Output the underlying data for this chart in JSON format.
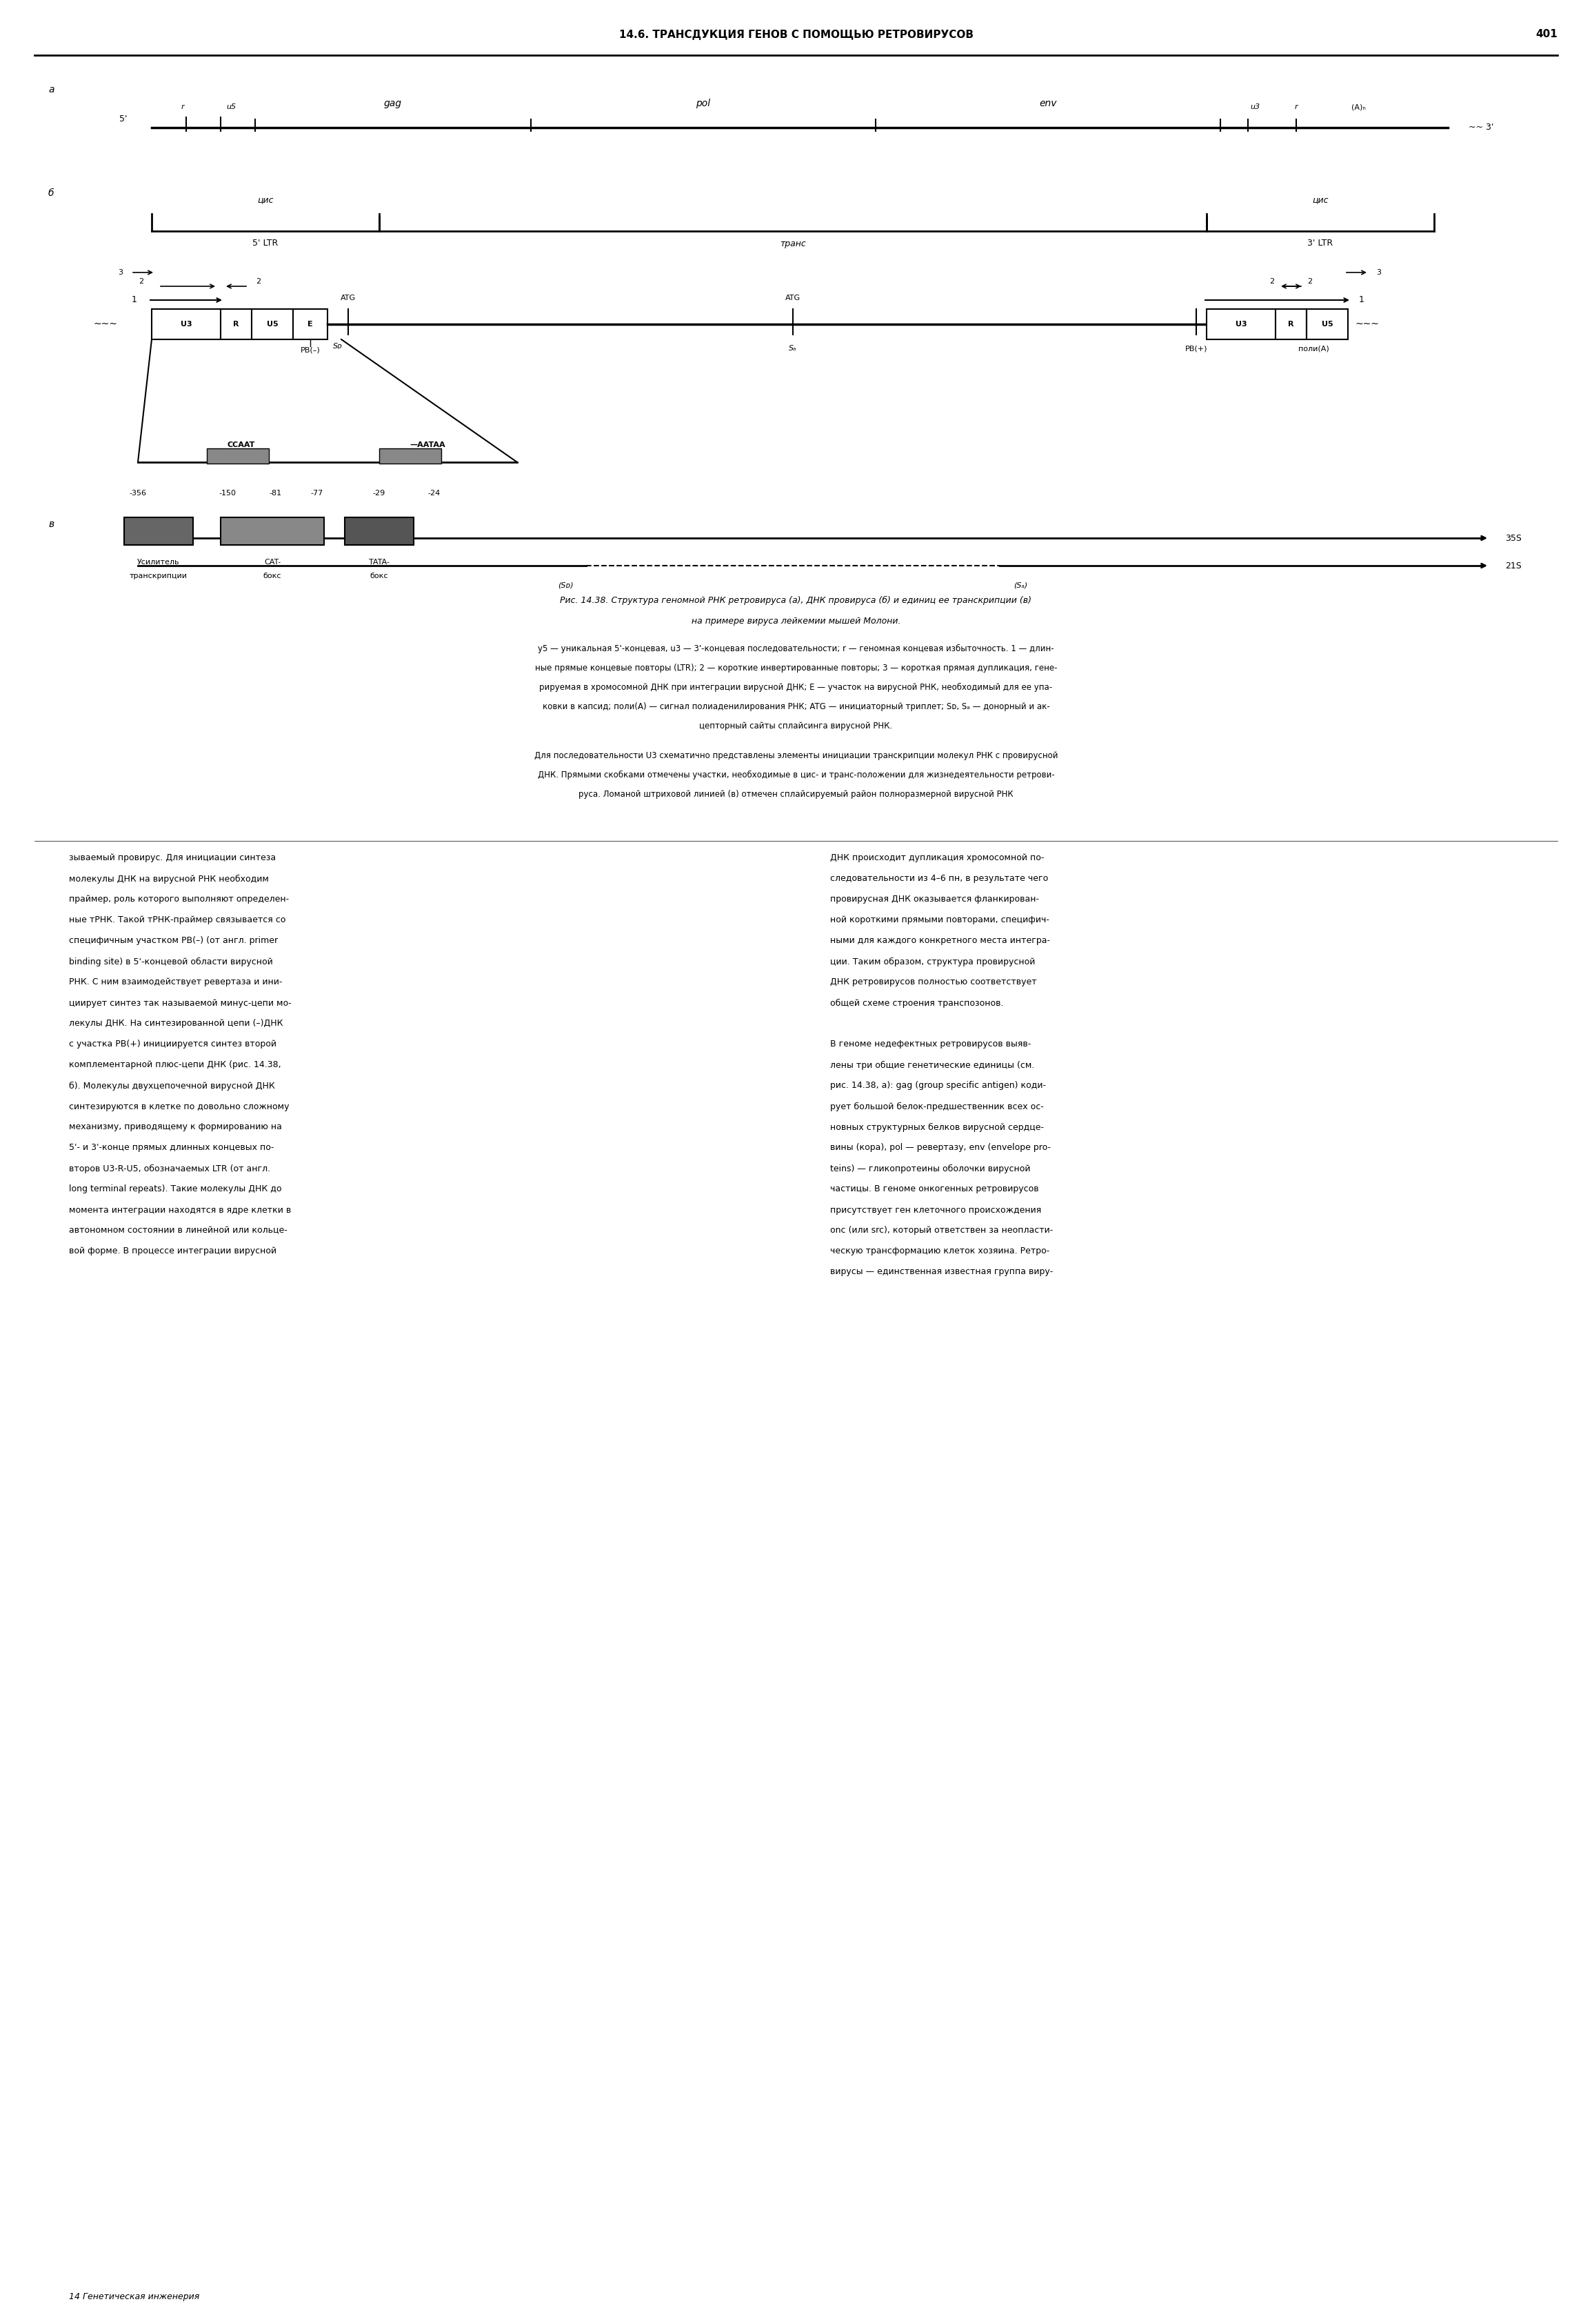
{
  "header_text": "14.6. ТРАНСДУКЦИЯ ГЕНОВ С ПОМОЩЬЮ РЕТРОВИРУСОВ",
  "page_num": "401",
  "fig_label": "Рис. 14.38.",
  "fig_caption": "Структура геномной РНК ретровируса (а), ДНК провируса (б) и единиц ее транскрипции (в)\nна примере вируса лейкемии мышей Молони.",
  "footnote1": "у5 — уникальная 5'-концевая, u3 — 3'-концевая последовательности; r — геномная концевая избыточность. 1 — длин-\nные прямые концевые повторы (LTR); 2 — короткие инвертированные повторы; 3 — короткая прямая дупликация, гене-\nрируемая в хромосомной ДНК при интеграции вирусной ДНК; E — участок на вирусной РНК, необходимый для ее упа-\nковки в капсид; поли(A) — сигнал полиаденилирования РНК; ATG — инициаторный триплет; Sᴅ, Sₐ — донорный и ак-\nцепторный сайты сплайсинга вирусной РНК.",
  "footnote2": "Для последовательности U3 схематично представлены элементы инициации транскрипции молекул РНК с провирусной\nДНК. Прямыми скобками отмечены участки, необходимые в цис- и транс-положении для жизнедеятельности ретрови-\nруса. Ломаной штриховой линией (в) отмечен сплайсируемый район полноразмерной вирусной РНК",
  "main_text_col1": "зываемый провирус. Для инициации синтеза\nмолекулы ДНК на вирусной РНК необходим\nпраймер, роль которого выполняют определен-\nные тРНК. Такой тРНК-праймер связывается со\nспецифичным участком PB(–) (от англ. primer\nbinding site) в 5'-концевой области вирусной\nРНК. С ним взаимодействует ревертаза и ини-\nциирует синтез так называемой минус-цепи мо-\nлекулы ДНК. На синтезированной цепи (–)ДНК\nс участка PB(+) инициируется синтез второй\nкомплементарной плюс-цепи ДНК (рис. 14.38,\nб). Молекулы двухцепочечной вирусной ДНК\nсинтезируются в клетке по довольно сложному\nмеханизму, приводящему к формированию на\n5'- и 3'-конце прямых длинных концевых по-\nвторов U3-R-U5, обозначаемых LTR (от англ.\nlong terminal repeats). Такие молекулы ДНК до\nмомента интеграции находятся в ядре клетки в\nавтономном состоянии в линейной или кольце-\nвой форме. В процессе интеграции вирусной",
  "main_text_col2": "ДНК происходит дупликация хромосомной по-\nследовательности из 4–6 пн, в результате чего\nпровирусная ДНК оказывается фланкирован-\nной короткими прямыми повторами, специфич-\nными для каждого конкретного места интегра-\nции. Таким образом, структура провирусной\nДНК ретровирусов полностью соответствует\nобщей схеме строения транспозонов.\n\nВ геноме недефектных ретровирусов выяв-\nлены три общие генетические единицы (см.\nрис. 14.38, а): gag (group specific antigen) коди-\nрует большой белок-предшественник всех ос-\nновных структурных белков вирусной сердце-\nвины (кора), pol — ревертазу, env (envelope pro-\nteins) — гликопротеины оболочки вирусной\nчастицы. В геноме онкогенных ретровирусов\nприсутствует ген клеточного происхождения\nonc (или src), который ответствен за неопласти-\nческую трансформацию клеток хозяина. Ретро-\nвирусы — единственная известная группа виру-"
}
